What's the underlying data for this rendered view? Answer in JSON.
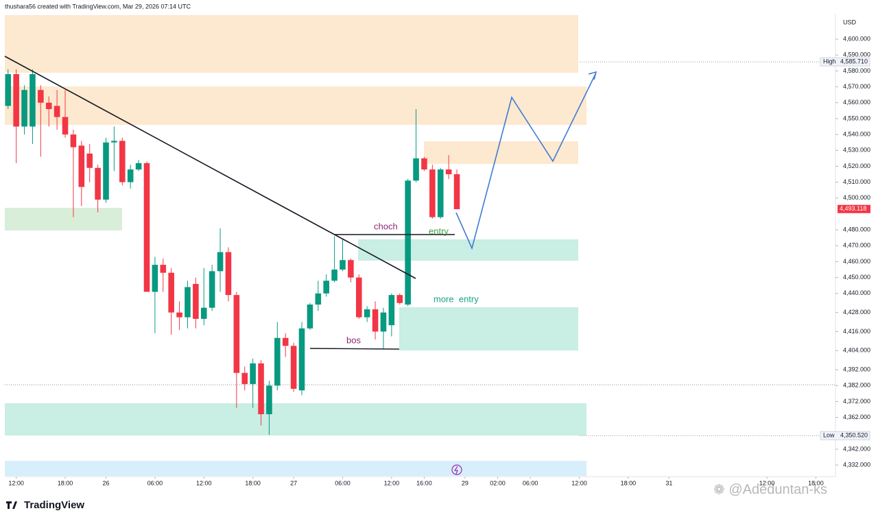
{
  "header": "thushara56 created with TradingView.com, Mar 29, 2026 07:14 UTC",
  "chart_data": {
    "type": "candlestick",
    "currency": "USD",
    "colors": {
      "up": "#089981",
      "down": "#f23645"
    },
    "open": [
      4558,
      4578,
      4545,
      4545,
      4568,
      4560,
      4558,
      4551,
      4540,
      4533,
      4528,
      4519,
      4499,
      4535,
      4536,
      4510,
      4518,
      4522,
      4441,
      4458,
      4453,
      4428,
      4425,
      4446,
      4424,
      4431,
      4454,
      4466,
      4439,
      4390,
      4383,
      4396,
      4364,
      4382,
      4412,
      4407,
      4379,
      4418,
      4433,
      4440,
      4448,
      4455,
      4461,
      4450,
      4425,
      4430,
      4416,
      4420,
      4439,
      4433,
      4511,
      4525,
      4518,
      4488,
      4518,
      4515
    ],
    "high": [
      4581,
      4581,
      4571,
      4581,
      4571,
      4564,
      4568,
      4568,
      4543,
      4536,
      4534,
      4521,
      4538,
      4545,
      4538,
      4521,
      4524,
      4523,
      4463,
      4462,
      4456,
      4435,
      4448,
      4450,
      4456,
      4458,
      4481,
      4469,
      4441,
      4394,
      4399,
      4398,
      4385,
      4422,
      4415,
      4409,
      4422,
      4434,
      4448,
      4452,
      4476,
      4474,
      4462,
      4452,
      4432,
      4435,
      4431,
      4440,
      4440,
      4512,
      4556,
      4526,
      4521,
      4519,
      4527,
      4518
    ],
    "low": [
      4556,
      4522,
      4540,
      4534,
      4526,
      4545,
      4543,
      4538,
      4488,
      4495,
      4510,
      4491,
      4497,
      4517,
      4508,
      4506,
      4517,
      4441,
      4415,
      4441,
      4414,
      4417,
      4418,
      4418,
      4420,
      4429,
      4441,
      4435,
      4368,
      4379,
      4368,
      4357,
      4351,
      4379,
      4400,
      4378,
      4376,
      4417,
      4429,
      4438,
      4447,
      4454,
      4447,
      4424,
      4422,
      4411,
      4405,
      4413,
      4433,
      4432,
      4510,
      4517,
      4487,
      4487,
      4512,
      4493
    ],
    "close": [
      4578,
      4545,
      4568,
      4578,
      4560,
      4556,
      4551,
      4540,
      4532,
      4507,
      4519,
      4499,
      4535,
      4536,
      4510,
      4518,
      4522,
      4441,
      4458,
      4453,
      4428,
      4425,
      4444,
      4424,
      4431,
      4454,
      4466,
      4439,
      4390,
      4383,
      4396,
      4364,
      4382,
      4412,
      4407,
      4380,
      4418,
      4433,
      4440,
      4448,
      4455,
      4461,
      4450,
      4425,
      4430,
      4416,
      4428,
      4439,
      4434,
      4511,
      4525,
      4518,
      4488,
      4518,
      4515,
      4493
    ],
    "xlim": [
      -0.4,
      101.4
    ],
    "xticks": [
      {
        "value": 1,
        "label": "12:00"
      },
      {
        "value": 7,
        "label": "18:00"
      },
      {
        "value": 12,
        "label": "26"
      },
      {
        "value": 18,
        "label": "06:00"
      },
      {
        "value": 24,
        "label": "12:00"
      },
      {
        "value": 30,
        "label": "18:00"
      },
      {
        "value": 35,
        "label": "27"
      },
      {
        "value": 41,
        "label": "06:00"
      },
      {
        "value": 47,
        "label": "12:00"
      },
      {
        "value": 51,
        "label": "16:00"
      },
      {
        "value": 56,
        "label": "29"
      },
      {
        "value": 60,
        "label": "02:00"
      },
      {
        "value": 64,
        "label": "06:00"
      },
      {
        "value": 70,
        "label": "12:00"
      },
      {
        "value": 76,
        "label": "18:00"
      },
      {
        "value": 81,
        "label": "31"
      },
      {
        "value": 93,
        "label": "12:00"
      },
      {
        "value": 99,
        "label": "18:00"
      }
    ],
    "ylim": [
      4324.7,
      4616
    ],
    "yticks": [
      {
        "value": 4600,
        "label": "4,600.000"
      },
      {
        "value": 4590,
        "label": "4,590.000"
      },
      {
        "value": 4580,
        "label": "4,580.000"
      },
      {
        "value": 4570,
        "label": "4,570.000"
      },
      {
        "value": 4560,
        "label": "4,560.000"
      },
      {
        "value": 4550,
        "label": "4,550.000"
      },
      {
        "value": 4540,
        "label": "4,540.000"
      },
      {
        "value": 4530,
        "label": "4,530.000"
      },
      {
        "value": 4520,
        "label": "4,520.000"
      },
      {
        "value": 4510,
        "label": "4,510.000"
      },
      {
        "value": 4500,
        "label": "4,500.000"
      },
      {
        "value": 4480,
        "label": "4,480.000"
      },
      {
        "value": 4470,
        "label": "4,470.000"
      },
      {
        "value": 4460,
        "label": "4,460.000"
      },
      {
        "value": 4450,
        "label": "4,450.000"
      },
      {
        "value": 4440,
        "label": "4,440.000"
      },
      {
        "value": 4428,
        "label": "4,428.000"
      },
      {
        "value": 4416,
        "label": "4,416.000"
      },
      {
        "value": 4404,
        "label": "4,404.000"
      },
      {
        "value": 4392,
        "label": "4,392.000"
      },
      {
        "value": 4382,
        "label": "4,382.000"
      },
      {
        "value": 4372,
        "label": "4,372.000"
      },
      {
        "value": 4362,
        "label": "4,362.000"
      },
      {
        "value": 4342,
        "label": "4,342.000"
      },
      {
        "value": 4332,
        "label": "4,332.000"
      }
    ],
    "high_marker": {
      "name": "High",
      "value": 4585.71,
      "label": "4,585.710"
    },
    "low_marker": {
      "name": "Low",
      "value": 4350.52,
      "label": "4,350.520"
    },
    "last_price": {
      "value": 4493.118,
      "label": "4,493.118"
    },
    "annotations": [
      "choch",
      "entry",
      "more  entry",
      "bos"
    ]
  },
  "footer": {
    "logo": "TradingView",
    "watermark": "@Adeduntan-ks"
  }
}
